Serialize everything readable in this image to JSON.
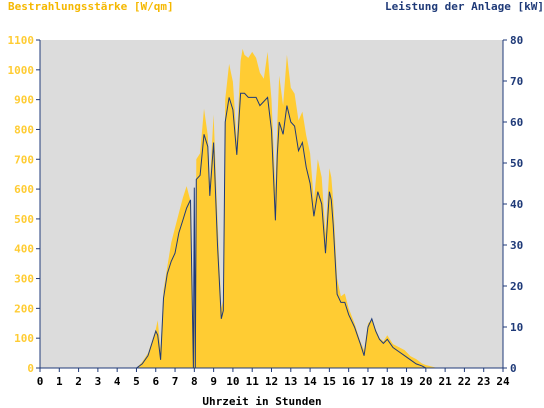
{
  "colors": {
    "irradiance": "#ffcc33",
    "power": "#1f3a78",
    "plot_background": "#dcdcdc",
    "axis": "#1f3a78"
  },
  "chart_data": {
    "type": "area",
    "title": "",
    "left_label": "Bestrahlungsstärke [W/qm]",
    "right_label": "Leistung der Anlage [kW]",
    "xlabel": "Uhrzeit in Stunden",
    "xlim": [
      0,
      24
    ],
    "ylim_left": [
      0,
      1100
    ],
    "ylim_right": [
      0,
      80
    ],
    "x_ticks": [
      "0",
      "1",
      "2",
      "3",
      "4",
      "5",
      "6",
      "7",
      "8",
      "9",
      "10",
      "11",
      "12",
      "13",
      "14",
      "15",
      "16",
      "17",
      "18",
      "19",
      "20",
      "21",
      "22",
      "23",
      "24"
    ],
    "y_ticks_left": [
      "0",
      "100",
      "200",
      "300",
      "400",
      "500",
      "600",
      "700",
      "800",
      "900",
      "1000",
      "1100"
    ],
    "y_ticks_right": [
      "0",
      "10",
      "20",
      "30",
      "40",
      "50",
      "60",
      "70",
      "80"
    ],
    "grid": false,
    "series": [
      {
        "name": "Bestrahlungsstärke [W/qm]",
        "axis": "left",
        "style": "filled-area",
        "x": [
          0,
          5,
          5.3,
          5.6,
          5.8,
          6.0,
          6.1,
          6.25,
          6.4,
          6.6,
          6.8,
          7.0,
          7.2,
          7.4,
          7.6,
          7.8,
          7.95,
          8.0,
          8.05,
          8.1,
          8.3,
          8.5,
          8.7,
          8.8,
          9.0,
          9.2,
          9.4,
          9.5,
          9.6,
          9.8,
          10.0,
          10.2,
          10.4,
          10.5,
          10.6,
          10.8,
          11.0,
          11.2,
          11.4,
          11.6,
          11.8,
          12.0,
          12.2,
          12.3,
          12.4,
          12.6,
          12.8,
          13.0,
          13.2,
          13.4,
          13.6,
          13.8,
          14.0,
          14.2,
          14.4,
          14.6,
          14.8,
          15.0,
          15.1,
          15.2,
          15.4,
          15.6,
          15.8,
          16.0,
          16.3,
          16.6,
          16.8,
          17.0,
          17.2,
          17.4,
          17.6,
          17.8,
          18.0,
          18.3,
          18.6,
          18.9,
          19.2,
          19.5,
          19.8,
          20.0,
          20.3,
          20.6,
          24
        ],
        "values": [
          0,
          0,
          20,
          50,
          90,
          130,
          160,
          60,
          260,
          340,
          420,
          470,
          520,
          570,
          610,
          560,
          0,
          620,
          0,
          700,
          720,
          870,
          780,
          620,
          850,
          500,
          200,
          230,
          900,
          1020,
          960,
          760,
          1030,
          1070,
          1050,
          1040,
          1060,
          1040,
          990,
          970,
          1060,
          900,
          600,
          820,
          980,
          880,
          1050,
          940,
          920,
          830,
          860,
          780,
          720,
          560,
          700,
          640,
          450,
          670,
          640,
          560,
          300,
          240,
          250,
          200,
          150,
          90,
          60,
          150,
          160,
          130,
          100,
          90,
          110,
          80,
          70,
          60,
          40,
          30,
          15,
          10,
          5,
          0,
          0
        ]
      },
      {
        "name": "Leistung der Anlage [kW]",
        "axis": "right",
        "style": "line",
        "x": [
          0,
          5,
          5.3,
          5.6,
          5.8,
          6.0,
          6.1,
          6.25,
          6.4,
          6.6,
          6.8,
          7.0,
          7.2,
          7.4,
          7.6,
          7.8,
          7.95,
          8.0,
          8.05,
          8.1,
          8.3,
          8.5,
          8.7,
          8.8,
          9.0,
          9.2,
          9.4,
          9.5,
          9.6,
          9.8,
          10.0,
          10.2,
          10.4,
          10.6,
          10.8,
          11.0,
          11.2,
          11.4,
          11.6,
          11.8,
          12.0,
          12.2,
          12.3,
          12.4,
          12.6,
          12.8,
          13.0,
          13.2,
          13.4,
          13.6,
          13.8,
          14.0,
          14.2,
          14.4,
          14.6,
          14.8,
          15.0,
          15.1,
          15.2,
          15.4,
          15.6,
          15.8,
          16.0,
          16.3,
          16.6,
          16.8,
          17.0,
          17.2,
          17.4,
          17.6,
          17.8,
          18.0,
          18.3,
          18.6,
          18.9,
          19.2,
          19.5,
          19.8,
          20.0,
          20.3,
          20.6,
          24
        ],
        "values": [
          0,
          0,
          1,
          3,
          6,
          9,
          8,
          2,
          17,
          23,
          26,
          28,
          33,
          36,
          39,
          41,
          0,
          44,
          0,
          46,
          47,
          57,
          54,
          42,
          55,
          30,
          12,
          14,
          60,
          66,
          63,
          52,
          67,
          67,
          66,
          66,
          66,
          64,
          65,
          66,
          58,
          36,
          52,
          60,
          57,
          64,
          60,
          59,
          53,
          55,
          49,
          45,
          37,
          43,
          40,
          28,
          43,
          41,
          35,
          18,
          16,
          16,
          13,
          10,
          6,
          3,
          10,
          12,
          9,
          7,
          6,
          7,
          5,
          4,
          3,
          2,
          1,
          0.5,
          0,
          0,
          0,
          0
        ]
      }
    ]
  }
}
